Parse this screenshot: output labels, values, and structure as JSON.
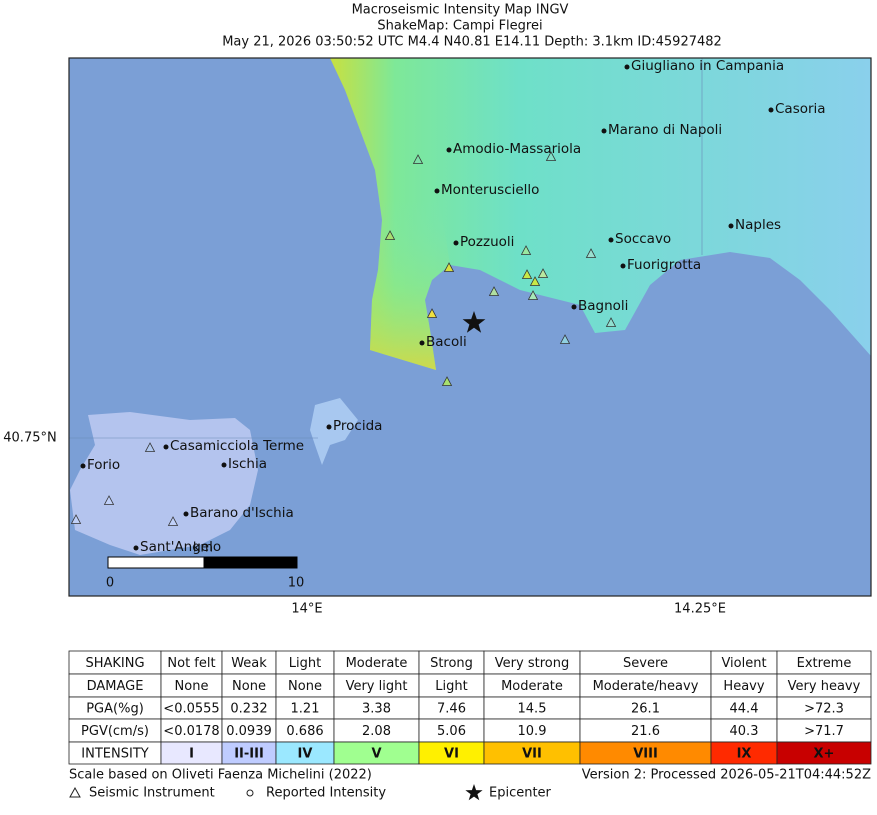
{
  "header": {
    "title": "Macroseismic Intensity Map INGV",
    "subtitle": "ShakeMap: Campi Flegrei",
    "event": "May 21, 2026 03:50:52 UTC M4.4 N40.81 E14.11 Depth: 3.1km ID:45927482"
  },
  "map": {
    "cities": [
      "Giugliano in Campania",
      "Casoria",
      "Marano di Napoli",
      "Amodio-Massariola",
      "Monterusciello",
      "Naples",
      "Pozzuoli",
      "Soccavo",
      "Fuorigrotta",
      "Bagnoli",
      "Bacoli",
      "Procida",
      "Casamicciola Terme",
      "Ischia",
      "Forio",
      "Barano d'Ischia",
      "Sant'Angelo"
    ],
    "lat_label": "40.75°N",
    "lon_labels": [
      "14°E",
      "14.25°E"
    ],
    "scale_bar": {
      "start": "0",
      "unit": "km",
      "end": "10"
    }
  },
  "table": {
    "rows": [
      [
        "SHAKING",
        "Not felt",
        "Weak",
        "Light",
        "Moderate",
        "Strong",
        "Very strong",
        "Severe",
        "Violent",
        "Extreme"
      ],
      [
        "DAMAGE",
        "None",
        "None",
        "None",
        "Very light",
        "Light",
        "Moderate",
        "Moderate/heavy",
        "Heavy",
        "Very heavy"
      ],
      [
        "PGA(%g)",
        "<0.0555",
        "0.232",
        "1.21",
        "3.38",
        "7.46",
        "14.5",
        "26.1",
        "44.4",
        ">72.3"
      ],
      [
        "PGV(cm/s)",
        "<0.0178",
        "0.0939",
        "0.686",
        "2.08",
        "5.06",
        "10.9",
        "21.6",
        "40.3",
        ">71.7"
      ],
      [
        "INTENSITY",
        "I",
        "II-III",
        "IV",
        "V",
        "VI",
        "VII",
        "VIII",
        "IX",
        "X+"
      ]
    ],
    "intensity_colors": [
      "#e8e8ff",
      "#bfccff",
      "#9be8ff",
      "#a0ff90",
      "#fff000",
      "#ffc000",
      "#ff8a00",
      "#ff2a00",
      "#c80000"
    ]
  },
  "footer": {
    "scale_note": "Scale based on Oliveti Faenza Michelini (2022)",
    "version": "Version 2: Processed 2026-05-21T04:44:52Z",
    "legend": [
      "Seismic Instrument",
      "Reported Intensity",
      "Epicenter"
    ]
  }
}
